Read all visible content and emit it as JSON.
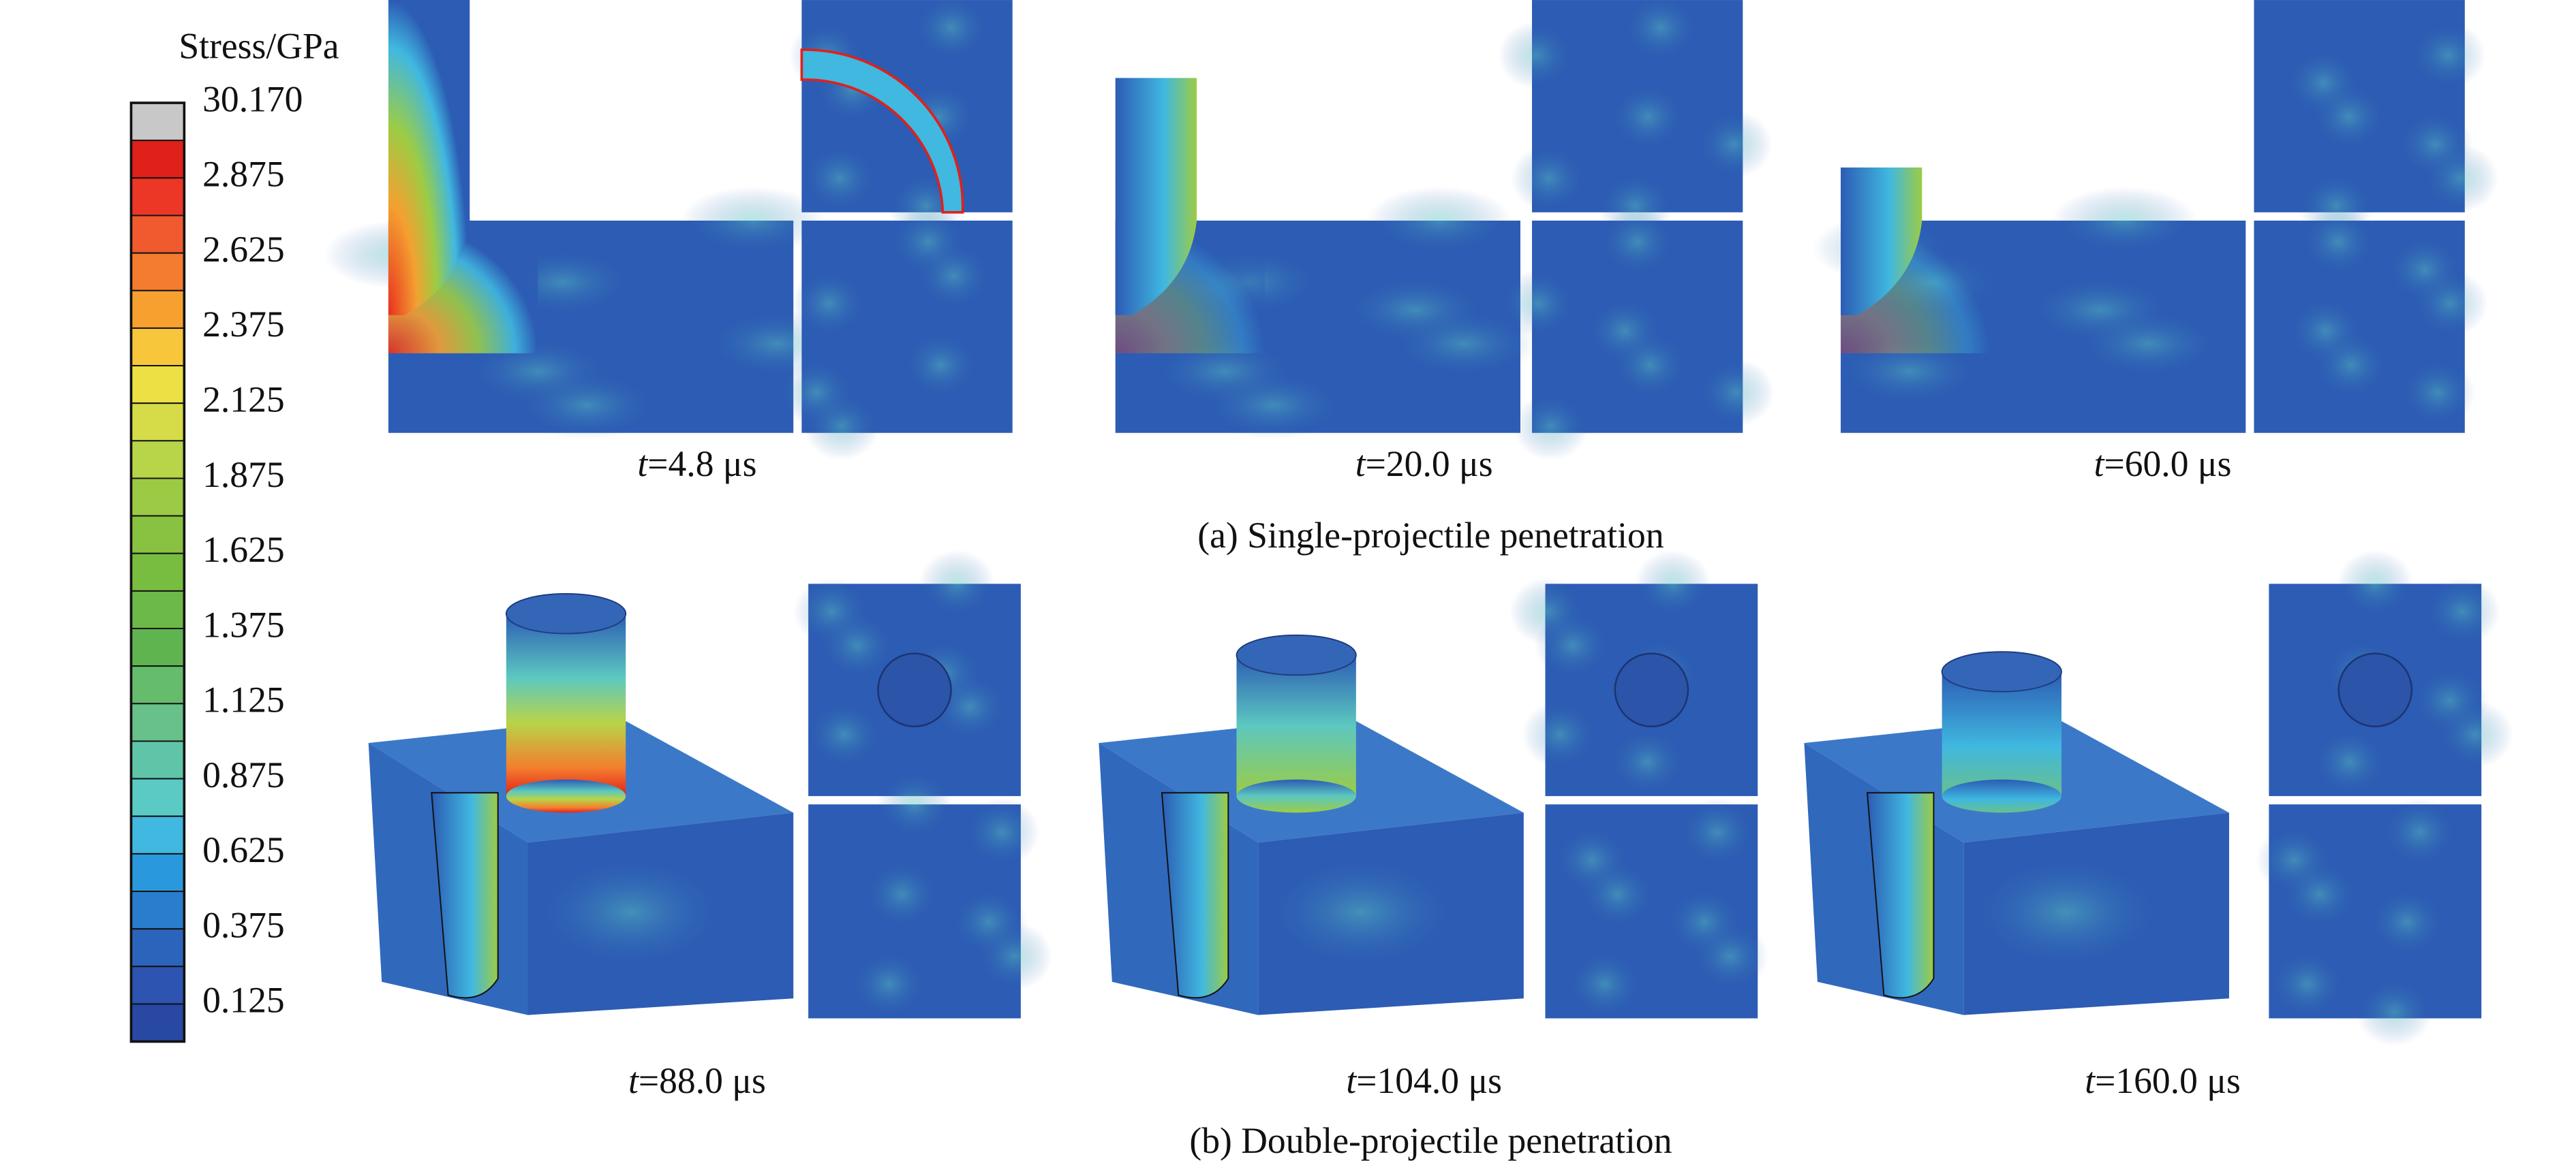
{
  "colorbar": {
    "title": "Stress/GPa",
    "labels": [
      "30.170",
      "2.875",
      "2.625",
      "2.375",
      "2.125",
      "1.875",
      "1.625",
      "1.375",
      "1.125",
      "0.875",
      "0.625",
      "0.375",
      "0.125"
    ],
    "colors": [
      "#c8c8c8",
      "#e0201a",
      "#ec3626",
      "#f05a2e",
      "#f47c2e",
      "#f7a030",
      "#f8c63a",
      "#ece044",
      "#d6dc48",
      "#b8d448",
      "#9cca44",
      "#88c240",
      "#78bc40",
      "#6cb848",
      "#60b450",
      "#64bc6c",
      "#68c08a",
      "#60c4a8",
      "#5ccac4",
      "#40b8e0",
      "#2a98dc",
      "#2a7ccc",
      "#2c64bc",
      "#2c54b0",
      "#2848a4"
    ]
  },
  "row_a": {
    "caption": "(a) Single-projectile penetration",
    "times": [
      {
        "symbol": "t",
        "value": "=4.8 μs"
      },
      {
        "symbol": "t",
        "value": "=20.0 μs"
      },
      {
        "symbol": "t",
        "value": "=60.0 μs"
      }
    ]
  },
  "row_b": {
    "caption": "(b) Double-projectile penetration",
    "times": [
      {
        "symbol": "t",
        "value": "=88.0 μs"
      },
      {
        "symbol": "t",
        "value": "=104.0 μs"
      },
      {
        "symbol": "t",
        "value": "=160.0 μs"
      }
    ]
  }
}
